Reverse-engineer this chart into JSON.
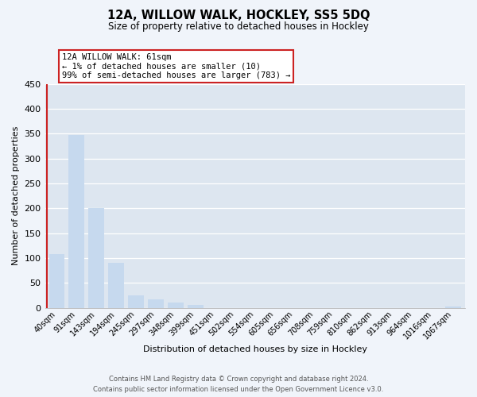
{
  "title": "12A, WILLOW WALK, HOCKLEY, SS5 5DQ",
  "subtitle": "Size of property relative to detached houses in Hockley",
  "xlabel": "Distribution of detached houses by size in Hockley",
  "ylabel": "Number of detached properties",
  "bar_labels": [
    "40sqm",
    "91sqm",
    "143sqm",
    "194sqm",
    "245sqm",
    "297sqm",
    "348sqm",
    "399sqm",
    "451sqm",
    "502sqm",
    "554sqm",
    "605sqm",
    "656sqm",
    "708sqm",
    "759sqm",
    "810sqm",
    "862sqm",
    "913sqm",
    "964sqm",
    "1016sqm",
    "1067sqm"
  ],
  "bar_values": [
    108,
    348,
    200,
    91,
    25,
    17,
    10,
    6,
    0,
    0,
    0,
    0,
    0,
    0,
    0,
    0,
    0,
    0,
    0,
    0,
    3
  ],
  "bar_color": "#c6d9ee",
  "highlight_color": "#cc2222",
  "ylim": [
    0,
    450
  ],
  "yticks": [
    0,
    50,
    100,
    150,
    200,
    250,
    300,
    350,
    400,
    450
  ],
  "annotation_title": "12A WILLOW WALK: 61sqm",
  "annotation_line1": "← 1% of detached houses are smaller (10)",
  "annotation_line2": "99% of semi-detached houses are larger (783) →",
  "annotation_box_color": "#cc2222",
  "footer_line1": "Contains HM Land Registry data © Crown copyright and database right 2024.",
  "footer_line2": "Contains public sector information licensed under the Open Government Licence v3.0.",
  "bg_color": "#f0f4fa",
  "plot_bg_color": "#dde6f0"
}
